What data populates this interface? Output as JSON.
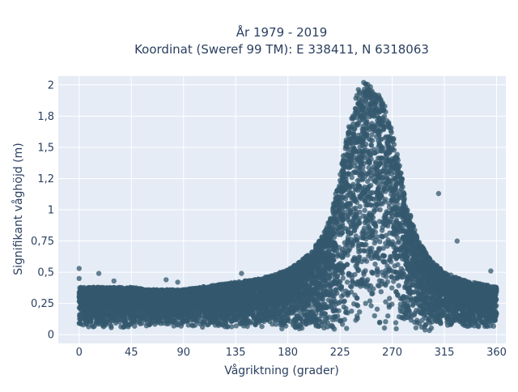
{
  "chart_data": {
    "type": "scatter",
    "title": "År 1979 - 2019",
    "subtitle": "Koordinat (Sweref 99 TM): E 338411, N 6318063",
    "xlabel": "Vågriktning (grader)",
    "ylabel": "Signifikant våghöjd (m)",
    "xlim": [
      -18,
      368
    ],
    "ylim": [
      -0.07,
      2.07
    ],
    "x_ticks": [
      0,
      45,
      90,
      135,
      180,
      225,
      270,
      315,
      360
    ],
    "x_tick_labels": [
      "0",
      "45",
      "90",
      "135",
      "180",
      "225",
      "270",
      "315",
      "360"
    ],
    "y_ticks": [
      0,
      0.25,
      0.5,
      0.75,
      1,
      1.25,
      1.5,
      1.75,
      2
    ],
    "y_tick_labels": [
      "0",
      "0,25",
      "0,5",
      "0,75",
      "1",
      "1,2",
      "1,5",
      "1,8",
      "2"
    ],
    "grid": true,
    "legend": "none",
    "marker_color": "#34586e",
    "plot_background": "#e5ecf6",
    "envelope": {
      "x": [
        0,
        15,
        30,
        45,
        60,
        75,
        90,
        105,
        120,
        135,
        150,
        165,
        180,
        190,
        200,
        210,
        215,
        220,
        225,
        230,
        235,
        240,
        245,
        250,
        255,
        260,
        265,
        270,
        275,
        280,
        285,
        290,
        295,
        300,
        305,
        310,
        315,
        320,
        330,
        340,
        350,
        360
      ],
      "y_max": [
        0.38,
        0.38,
        0.38,
        0.38,
        0.36,
        0.36,
        0.36,
        0.38,
        0.4,
        0.42,
        0.44,
        0.47,
        0.52,
        0.58,
        0.66,
        0.8,
        0.9,
        1.08,
        1.3,
        1.55,
        1.8,
        1.95,
        2.02,
        2.02,
        1.98,
        1.9,
        1.8,
        1.62,
        1.42,
        1.2,
        0.98,
        0.82,
        0.72,
        0.64,
        0.58,
        0.54,
        0.5,
        0.48,
        0.44,
        0.42,
        0.4,
        0.38
      ],
      "y_min": [
        0.05,
        0.05,
        0.05,
        0.05,
        0.06,
        0.06,
        0.06,
        0.06,
        0.06,
        0.05,
        0.05,
        0.04,
        0.03,
        0.02,
        0.02,
        0.02,
        0.02,
        0.02,
        0.02,
        0.02,
        0.02,
        0.02,
        0.02,
        0.02,
        0.02,
        0.02,
        0.02,
        0.02,
        0.02,
        0.02,
        0.02,
        0.02,
        0.02,
        0.03,
        0.03,
        0.04,
        0.04,
        0.05,
        0.05,
        0.05,
        0.05,
        0.05
      ]
    },
    "outliers": [
      {
        "x": 0,
        "y": 0.53
      },
      {
        "x": 17,
        "y": 0.49
      },
      {
        "x": 75,
        "y": 0.44
      },
      {
        "x": 85,
        "y": 0.42
      },
      {
        "x": 140,
        "y": 0.49
      },
      {
        "x": 310,
        "y": 1.13
      },
      {
        "x": 326,
        "y": 0.75
      },
      {
        "x": 355,
        "y": 0.51
      },
      {
        "x": 0,
        "y": 0.45
      },
      {
        "x": 30,
        "y": 0.43
      }
    ]
  }
}
